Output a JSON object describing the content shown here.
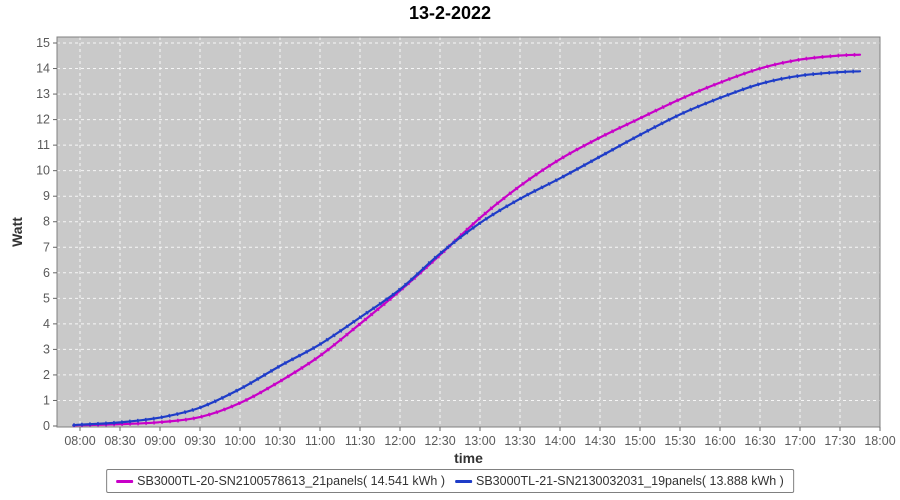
{
  "title": "13-2-2022",
  "axes": {
    "x_label": "time",
    "y_label": "Watt",
    "x_ticks": [
      "08:00",
      "08:30",
      "09:00",
      "09:30",
      "10:00",
      "10:30",
      "11:00",
      "11:30",
      "12:00",
      "12:30",
      "13:00",
      "13:30",
      "14:00",
      "14:30",
      "15:00",
      "15:30",
      "16:00",
      "16:30",
      "17:00",
      "17:30",
      "18:00"
    ],
    "y_ticks": [
      0,
      1,
      2,
      3,
      4,
      5,
      6,
      7,
      8,
      9,
      10,
      11,
      12,
      13,
      14,
      15
    ]
  },
  "legend": {
    "entries": [
      {
        "label": "SB3000TL-20-SN2100578613_21panels( 14.541 kWh )",
        "color": "#C800C8"
      },
      {
        "label": "SB3000TL-21-SN2130032031_19panels( 13.888 kWh )",
        "color": "#1E3CC8"
      }
    ]
  },
  "colors": {
    "plot_background": "#C9C9C9",
    "grid": "#FFFFFF",
    "plot_border": "#808080",
    "tick_label": "#5a5a5a",
    "series_magenta": "#C800C8",
    "series_blue": "#1E3CC8"
  },
  "chart_data": {
    "type": "line",
    "title": "13-2-2022",
    "xlabel": "time",
    "ylabel": "Watt",
    "ylim": [
      0,
      15
    ],
    "x_range_shown": [
      "07:42",
      "18:00"
    ],
    "grid": true,
    "legend_position": "bottom",
    "x": [
      "07:55",
      "08:00",
      "08:30",
      "09:00",
      "09:30",
      "10:00",
      "10:30",
      "11:00",
      "11:30",
      "12:00",
      "12:30",
      "13:00",
      "13:30",
      "14:00",
      "14:30",
      "15:00",
      "15:30",
      "16:00",
      "16:30",
      "17:00",
      "17:30",
      "17:45"
    ],
    "series": [
      {
        "name": "SB3000TL-20-SN2100578613_21panels( 14.541 kWh )",
        "color": "#C800C8",
        "total_kwh": 14.541,
        "values": [
          0.02,
          0.03,
          0.07,
          0.15,
          0.35,
          0.9,
          1.75,
          2.75,
          4.0,
          5.3,
          6.7,
          8.15,
          9.4,
          10.45,
          11.3,
          12.05,
          12.8,
          13.45,
          14.0,
          14.35,
          14.51,
          14.54
        ]
      },
      {
        "name": "SB3000TL-21-SN2130032031_19panels( 13.888 kWh )",
        "color": "#1E3CC8",
        "total_kwh": 13.888,
        "values": [
          0.03,
          0.05,
          0.14,
          0.33,
          0.72,
          1.45,
          2.35,
          3.2,
          4.25,
          5.35,
          6.75,
          7.95,
          8.9,
          9.7,
          10.55,
          11.4,
          12.2,
          12.85,
          13.4,
          13.72,
          13.86,
          13.89
        ]
      }
    ]
  }
}
